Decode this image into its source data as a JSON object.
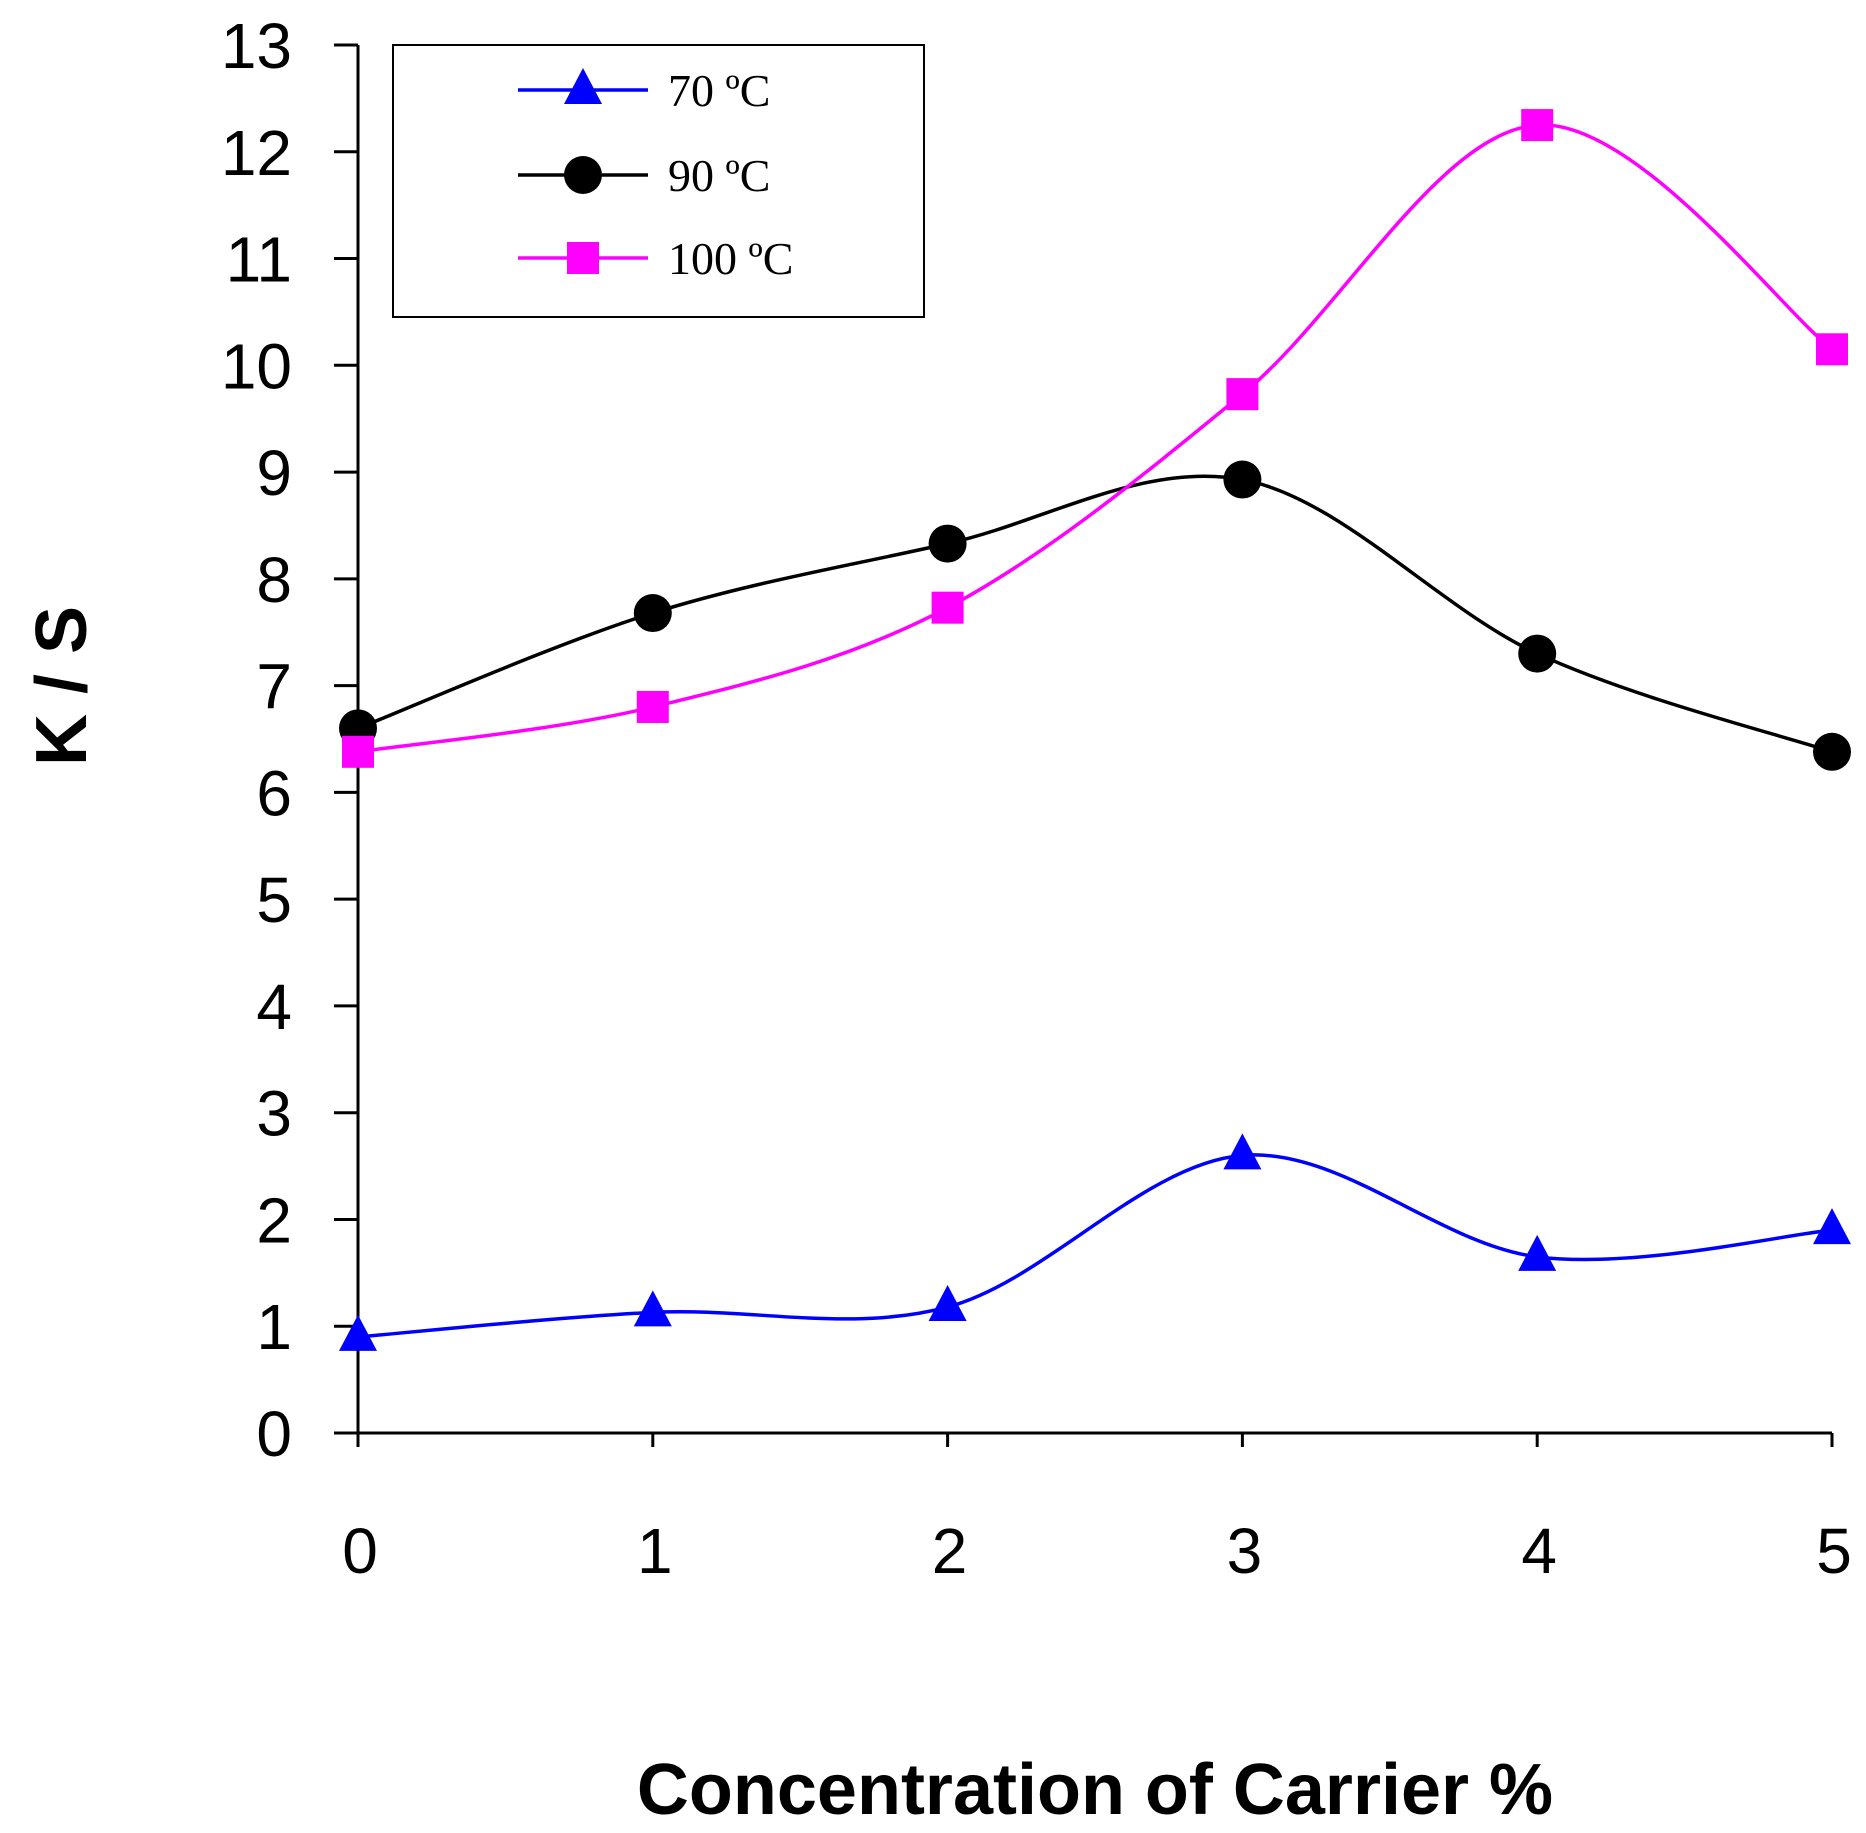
{
  "chart_data": {
    "type": "line",
    "title": "",
    "xlabel": "Concentration of Carrier %",
    "ylabel": "K / S",
    "x": [
      0,
      1,
      2,
      3,
      4,
      5
    ],
    "xlim": [
      0,
      5
    ],
    "ylim": [
      0,
      13
    ],
    "x_ticks": [
      "0",
      "1",
      "2",
      "3",
      "4",
      "5"
    ],
    "y_ticks": [
      "0",
      "1",
      "2",
      "3",
      "4",
      "5",
      "6",
      "7",
      "8",
      "9",
      "10",
      "11",
      "12",
      "13"
    ],
    "grid": false,
    "legend_position": "top-left",
    "smooth": true,
    "series": [
      {
        "name": "70 ºC",
        "color": "#0000ff",
        "marker": "triangle",
        "values": [
          0.9,
          1.13,
          1.18,
          2.6,
          1.65,
          1.9
        ]
      },
      {
        "name": "90 ºC",
        "color": "#000000",
        "marker": "circle",
        "values": [
          6.6,
          7.68,
          8.33,
          8.93,
          7.3,
          6.38
        ]
      },
      {
        "name": "100 ºC",
        "color": "#ff00ff",
        "marker": "square",
        "values": [
          6.38,
          6.8,
          7.73,
          9.73,
          12.25,
          10.15
        ]
      }
    ]
  }
}
